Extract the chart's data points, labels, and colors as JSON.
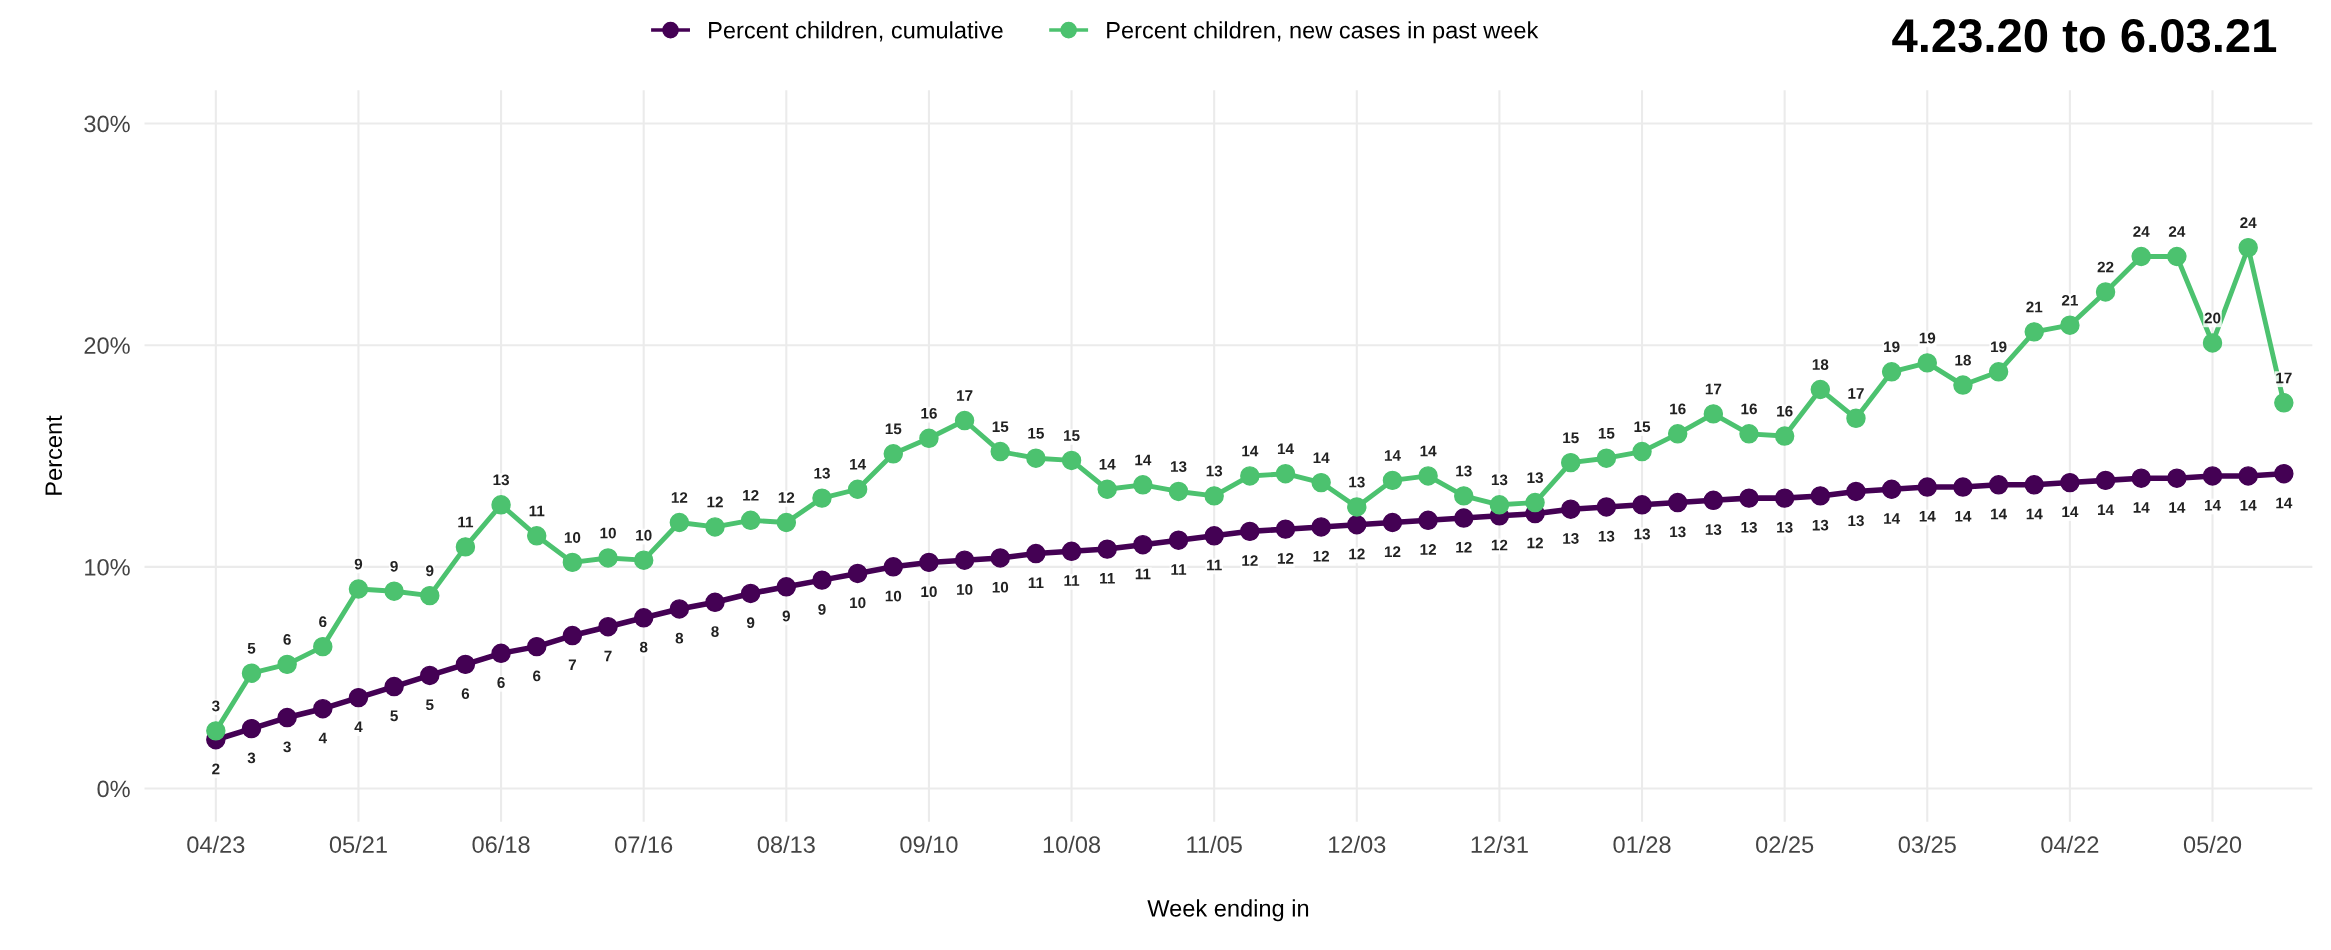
{
  "chart_data": {
    "type": "line",
    "title": "4.23.20 to 6.03.21",
    "xlabel": "Week ending in",
    "ylabel": "Percent",
    "categories": [
      "04/23",
      null,
      null,
      null,
      "05/21",
      null,
      null,
      null,
      "06/18",
      null,
      null,
      null,
      "07/16",
      null,
      null,
      null,
      "08/13",
      null,
      null,
      null,
      "09/10",
      null,
      null,
      null,
      "10/08",
      null,
      null,
      null,
      "11/05",
      null,
      null,
      null,
      "12/03",
      null,
      null,
      null,
      "12/31",
      null,
      null,
      null,
      "01/28",
      null,
      null,
      null,
      "02/25",
      null,
      null,
      null,
      "03/25",
      null,
      null,
      null,
      "04/22",
      null,
      null,
      null,
      "05/20",
      null,
      null
    ],
    "series": [
      {
        "name": "Percent children, cumulative",
        "color": "#440154",
        "values": [
          2.2,
          2.7,
          3.2,
          3.6,
          4.1,
          4.6,
          5.1,
          5.6,
          6.1,
          6.4,
          6.9,
          7.3,
          7.7,
          8.1,
          8.4,
          8.8,
          9.1,
          9.4,
          9.7,
          10.0,
          10.2,
          10.3,
          10.4,
          10.6,
          10.7,
          10.8,
          11.0,
          11.2,
          11.4,
          11.6,
          11.7,
          11.8,
          11.9,
          12.0,
          12.1,
          12.2,
          12.3,
          12.4,
          12.6,
          12.7,
          12.8,
          12.9,
          13.0,
          13.1,
          13.1,
          13.2,
          13.4,
          13.5,
          13.6,
          13.6,
          13.7,
          13.7,
          13.8,
          13.9,
          14.0,
          14.0,
          14.1,
          14.1,
          14.2
        ],
        "value_labels": [
          "2",
          "3",
          "3",
          "4",
          "4",
          "5",
          "5",
          "6",
          "6",
          "6",
          "7",
          "7",
          "8",
          "8",
          "8",
          "9",
          "9",
          "9",
          "10",
          "10",
          "10",
          "10",
          "10",
          "11",
          "11",
          "11",
          "11",
          "11",
          "11",
          "12",
          "12",
          "12",
          "12",
          "12",
          "12",
          "12",
          "12",
          "12",
          "13",
          "13",
          "13",
          "13",
          "13",
          "13",
          "13",
          "13",
          "13",
          "14",
          "14",
          "14",
          "14",
          "14",
          "14",
          "14",
          "14",
          "14",
          "14",
          "14",
          "14"
        ]
      },
      {
        "name": "Percent children, new cases in past week",
        "color": "#4cc26f",
        "values": [
          2.6,
          5.2,
          5.6,
          6.4,
          9.0,
          8.9,
          8.7,
          10.9,
          12.8,
          11.4,
          10.2,
          10.4,
          10.3,
          12.0,
          11.8,
          12.1,
          12.0,
          13.1,
          13.5,
          15.1,
          15.8,
          16.6,
          15.2,
          14.9,
          14.8,
          13.5,
          13.7,
          13.4,
          13.2,
          14.1,
          14.2,
          13.8,
          12.7,
          13.9,
          14.1,
          13.2,
          12.8,
          12.9,
          14.7,
          14.9,
          15.2,
          16.0,
          16.9,
          16.0,
          15.9,
          18.0,
          16.7,
          18.8,
          19.2,
          18.2,
          18.8,
          20.6,
          20.9,
          22.4,
          24.0,
          24.0,
          20.1,
          24.4,
          17.4
        ],
        "value_labels": [
          "3",
          "5",
          "6",
          "6",
          "9",
          "9",
          "9",
          "11",
          "13",
          "11",
          "10",
          "10",
          "10",
          "12",
          "12",
          "12",
          "12",
          "13",
          "14",
          "15",
          "16",
          "17",
          "15",
          "15",
          "15",
          "14",
          "14",
          "13",
          "13",
          "14",
          "14",
          "14",
          "13",
          "14",
          "14",
          "13",
          "13",
          "13",
          "15",
          "15",
          "15",
          "16",
          "17",
          "16",
          "16",
          "18",
          "17",
          "19",
          "19",
          "18",
          "19",
          "21",
          "21",
          "22",
          "24",
          "24",
          "20",
          "24",
          "17"
        ]
      }
    ],
    "ylim": [
      -1.5,
      31.5
    ],
    "yticks": [
      {
        "value": 0,
        "label": "0%"
      },
      {
        "value": 10,
        "label": "10%"
      },
      {
        "value": 20,
        "label": "20%"
      },
      {
        "value": 30,
        "label": "30%"
      }
    ],
    "grid": true,
    "legend": "top",
    "marker": "circle"
  }
}
